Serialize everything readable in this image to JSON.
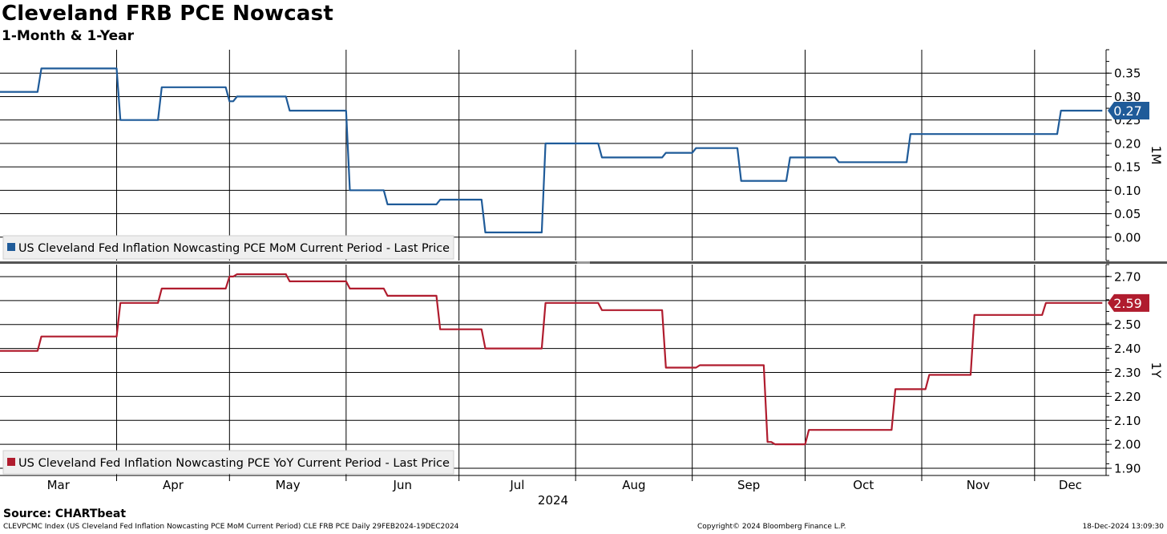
{
  "title": "Cleveland FRB PCE Nowcast",
  "subtitle": "1-Month & 1-Year",
  "source": "Source: CHARTbeat",
  "footer": {
    "left": "CLEVPCMC Index (US Cleveland Fed Inflation Nowcasting PCE MoM Current Period) CLE FRB PCE  Daily 29FEB2024-19DEC2024",
    "middle": "Copyright© 2024 Bloomberg Finance L.P.",
    "right": "18-Dec-2024 13:09:30"
  },
  "chart_data": [
    {
      "type": "line",
      "axis_label": "1M",
      "legend": "US Cleveland Fed Inflation Nowcasting PCE MoM Current Period - Last Price",
      "legend_position": "bottom-left",
      "color": "#1f5b99",
      "last_value_label": "0.27",
      "ylim": [
        -0.05,
        0.4
      ],
      "yticks": [
        "0.35",
        "0.30",
        "0.25",
        "0.20",
        "0.15",
        "0.10",
        "0.05",
        "0.00"
      ],
      "grid": true,
      "x_axis": {
        "year_label": "2024",
        "months": [
          "Mar",
          "Apr",
          "May",
          "Jun",
          "Jul",
          "Aug",
          "Sep",
          "Oct",
          "Nov",
          "Dec"
        ],
        "range": [
          "2024-02-29",
          "2024-12-19"
        ]
      },
      "series": [
        {
          "x": [
            "2024-02-29",
            "2024-03-10",
            "2024-03-11",
            "2024-03-31",
            "2024-04-01",
            "2024-04-11",
            "2024-04-12",
            "2024-04-29",
            "2024-04-30",
            "2024-05-01",
            "2024-05-02",
            "2024-05-15",
            "2024-05-16",
            "2024-05-31",
            "2024-06-01",
            "2024-06-10",
            "2024-06-11",
            "2024-06-24",
            "2024-06-25",
            "2024-07-06",
            "2024-07-07",
            "2024-07-22",
            "2024-07-23",
            "2024-08-06",
            "2024-08-07",
            "2024-08-23",
            "2024-08-24",
            "2024-08-31",
            "2024-09-01",
            "2024-09-12",
            "2024-09-13",
            "2024-09-25",
            "2024-09-26",
            "2024-10-08",
            "2024-10-09",
            "2024-10-27",
            "2024-10-28",
            "2024-11-06",
            "2024-11-07",
            "2024-12-06",
            "2024-12-07",
            "2024-12-18"
          ],
          "y": [
            0.31,
            0.31,
            0.36,
            0.36,
            0.25,
            0.25,
            0.32,
            0.32,
            0.29,
            0.29,
            0.3,
            0.3,
            0.27,
            0.27,
            0.1,
            0.1,
            0.07,
            0.07,
            0.08,
            0.08,
            0.01,
            0.01,
            0.2,
            0.2,
            0.17,
            0.17,
            0.18,
            0.18,
            0.19,
            0.19,
            0.12,
            0.12,
            0.17,
            0.17,
            0.16,
            0.16,
            0.22,
            0.22,
            0.22,
            0.22,
            0.27,
            0.27
          ]
        }
      ]
    },
    {
      "type": "line",
      "axis_label": "1Y",
      "legend": "US Cleveland Fed Inflation Nowcasting PCE YoY Current Period - Last Price",
      "legend_position": "bottom-left",
      "color": "#b01c2e",
      "last_value_label": "2.59",
      "ylim": [
        1.87,
        2.75
      ],
      "yticks": [
        "2.70",
        "2.60",
        "2.50",
        "2.40",
        "2.30",
        "2.20",
        "2.10",
        "2.00",
        "1.90"
      ],
      "grid": true,
      "series": [
        {
          "x": [
            "2024-02-29",
            "2024-03-10",
            "2024-03-11",
            "2024-03-31",
            "2024-04-01",
            "2024-04-11",
            "2024-04-12",
            "2024-04-29",
            "2024-04-30",
            "2024-05-01",
            "2024-05-02",
            "2024-05-15",
            "2024-05-16",
            "2024-05-31",
            "2024-06-01",
            "2024-06-10",
            "2024-06-11",
            "2024-06-24",
            "2024-06-25",
            "2024-07-06",
            "2024-07-07",
            "2024-07-22",
            "2024-07-23",
            "2024-08-06",
            "2024-08-07",
            "2024-08-23",
            "2024-08-24",
            "2024-09-01",
            "2024-09-02",
            "2024-09-19",
            "2024-09-20",
            "2024-09-21",
            "2024-09-22",
            "2024-09-30",
            "2024-10-01",
            "2024-10-23",
            "2024-10-24",
            "2024-11-01",
            "2024-11-02",
            "2024-11-13",
            "2024-11-14",
            "2024-12-02",
            "2024-12-03",
            "2024-12-18"
          ],
          "y": [
            2.39,
            2.39,
            2.45,
            2.45,
            2.59,
            2.59,
            2.65,
            2.65,
            2.7,
            2.7,
            2.71,
            2.71,
            2.68,
            2.68,
            2.65,
            2.65,
            2.62,
            2.62,
            2.48,
            2.48,
            2.4,
            2.4,
            2.59,
            2.59,
            2.56,
            2.56,
            2.32,
            2.32,
            2.33,
            2.33,
            2.01,
            2.01,
            2.0,
            2.0,
            2.06,
            2.06,
            2.23,
            2.23,
            2.29,
            2.29,
            2.54,
            2.54,
            2.59,
            2.59
          ]
        }
      ]
    }
  ]
}
